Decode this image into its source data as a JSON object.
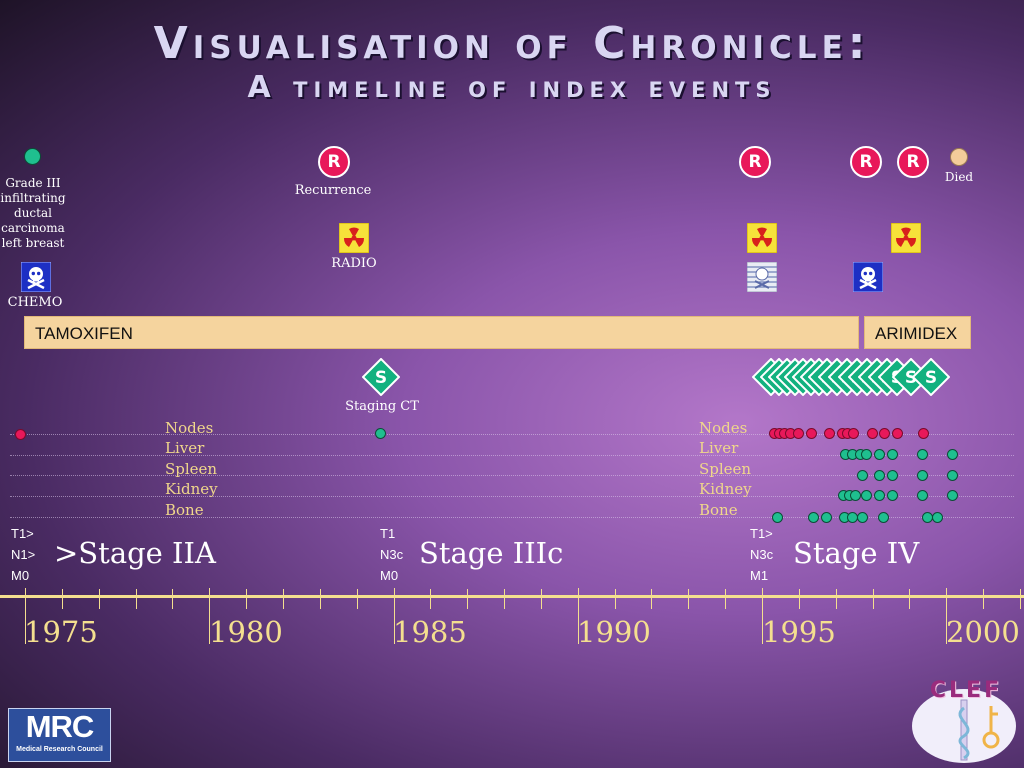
{
  "title": "Visualisation of Chronicle:",
  "subtitle": "A timeline of index events",
  "events": {
    "diagnosis": "Grade III infiltrating ductal carcinoma left breast",
    "recurrence": "Recurrence",
    "radio": "RADIO",
    "chemo": "CHEMO",
    "staging": "Staging CT",
    "died": "Died",
    "r_badge": "R",
    "s_badge": "S"
  },
  "drugs": {
    "tamoxifen": "TAMOXIFEN",
    "arimidex": "ARIMIDEX"
  },
  "test_rows": [
    "Nodes",
    "Liver",
    "Spleen",
    "Kidney",
    "Bone"
  ],
  "stages": [
    {
      "tnm": [
        "T1>",
        "N1>",
        "M0"
      ],
      "label": ">Stage IIA"
    },
    {
      "tnm": [
        "T1",
        "N3c",
        "M0"
      ],
      "label": "Stage IIIc"
    },
    {
      "tnm": [
        "T1>",
        "N3c",
        "M1"
      ],
      "label": "Stage IV"
    }
  ],
  "years": [
    "1975",
    "1980",
    "1985",
    "1990",
    "1995",
    "2000"
  ],
  "logos": {
    "mrc_big": "MRC",
    "mrc_small": "Medical Research Council",
    "clef": "CLEF"
  },
  "colors": {
    "recurrence": "#e8185a",
    "positive": "#e8185a",
    "negative": "#1fbf8f",
    "drug_bar": "#f5d49e",
    "axis": "#f4df8f",
    "row_label": "#f0d78b",
    "died": "#f3cc9a"
  },
  "icons": [
    "recurrence-r-icon",
    "radiation-icon",
    "skull-crossbones-icon",
    "staging-s-icon",
    "died-dot-icon"
  ]
}
